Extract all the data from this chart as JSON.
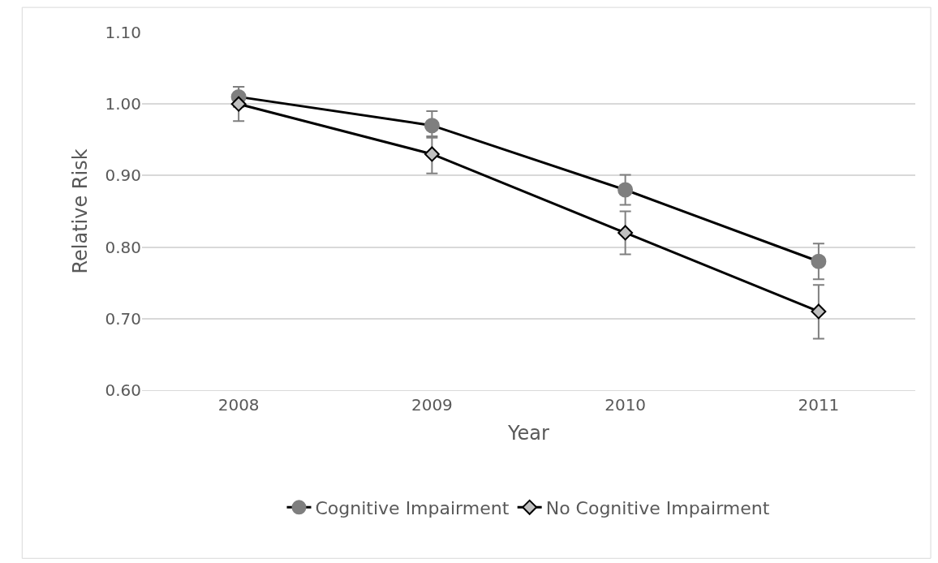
{
  "chart_data": {
    "type": "line",
    "xlabel": "Year",
    "ylabel": "Relative Risk",
    "categories": [
      "2008",
      "2009",
      "2010",
      "2011"
    ],
    "series": [
      {
        "name": "Cognitive Impairment",
        "color": "#7f7f7f",
        "marker": "circle",
        "values": [
          1.01,
          0.97,
          0.88,
          0.78
        ],
        "errors": [
          [
            0.996,
            1.024
          ],
          [
            0.955,
            0.99
          ],
          [
            0.859,
            0.901
          ],
          [
            0.755,
            0.805
          ]
        ]
      },
      {
        "name": "No Cognitive Impairment",
        "color": "#c0c0c0",
        "marker": "diamond",
        "values": [
          1.0,
          0.93,
          0.82,
          0.71
        ],
        "errors": [
          [
            0.976,
            1.024
          ],
          [
            0.903,
            0.953
          ],
          [
            0.79,
            0.85
          ],
          [
            0.672,
            0.747
          ]
        ]
      }
    ],
    "ylim": [
      0.6,
      1.1
    ],
    "yticks": [
      {
        "value": 0.6,
        "label": "0.60"
      },
      {
        "value": 0.7,
        "label": "0.70"
      },
      {
        "value": 0.8,
        "label": "0.80"
      },
      {
        "value": 0.9,
        "label": "0.90"
      },
      {
        "value": 1.0,
        "label": "1.00"
      },
      {
        "value": 1.1,
        "label": "1.10"
      }
    ],
    "grid": "y",
    "legend": "bottom",
    "line_style": "solid"
  }
}
